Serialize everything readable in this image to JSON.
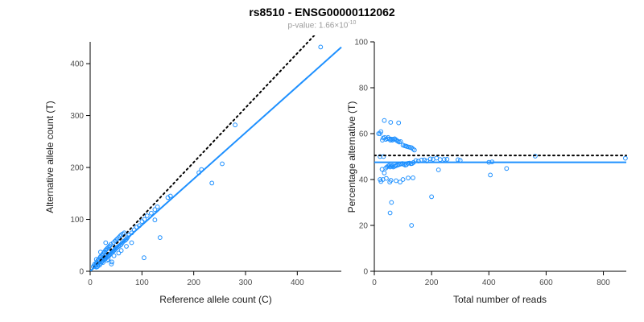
{
  "header": {
    "title": "rs8510 - ENSG00000112062",
    "p_label": "p-value: ",
    "p_base": "1.66×10",
    "p_exp": "-10"
  },
  "colors": {
    "accent_blue": "#1E90FF",
    "reference_line_black": "#000000",
    "tick_text": "#4d4d4d"
  },
  "ref_alt_pairs": [
    [
      6,
      9
    ],
    [
      8,
      12
    ],
    [
      12,
      8
    ],
    [
      10,
      10
    ],
    [
      14,
      9
    ],
    [
      9,
      14
    ],
    [
      15,
      12
    ],
    [
      12,
      16
    ],
    [
      16,
      16
    ],
    [
      18,
      12
    ],
    [
      13,
      18
    ],
    [
      20,
      15
    ],
    [
      15,
      21
    ],
    [
      22,
      18
    ],
    [
      17,
      23
    ],
    [
      24,
      20
    ],
    [
      19,
      26
    ],
    [
      26,
      22
    ],
    [
      20,
      28
    ],
    [
      28,
      24
    ],
    [
      22,
      30
    ],
    [
      30,
      25
    ],
    [
      24,
      32
    ],
    [
      32,
      27
    ],
    [
      25,
      34
    ],
    [
      34,
      29
    ],
    [
      27,
      36
    ],
    [
      36,
      30
    ],
    [
      28,
      38
    ],
    [
      38,
      32
    ],
    [
      30,
      41
    ],
    [
      40,
      34
    ],
    [
      32,
      43
    ],
    [
      42,
      36
    ],
    [
      34,
      45
    ],
    [
      44,
      38
    ],
    [
      36,
      47
    ],
    [
      46,
      40
    ],
    [
      38,
      49
    ],
    [
      48,
      42
    ],
    [
      40,
      52
    ],
    [
      50,
      44
    ],
    [
      45,
      55
    ],
    [
      52,
      46
    ],
    [
      48,
      58
    ],
    [
      55,
      48
    ],
    [
      50,
      60
    ],
    [
      58,
      50
    ],
    [
      52,
      62
    ],
    [
      60,
      52
    ],
    [
      55,
      65
    ],
    [
      62,
      55
    ],
    [
      58,
      68
    ],
    [
      65,
      58
    ],
    [
      60,
      70
    ],
    [
      68,
      60
    ],
    [
      63,
      72
    ],
    [
      70,
      62
    ],
    [
      66,
      74
    ],
    [
      72,
      65
    ],
    [
      12,
      23
    ],
    [
      20,
      37
    ],
    [
      30,
      55
    ],
    [
      35,
      23
    ],
    [
      46,
      30
    ],
    [
      55,
      35
    ],
    [
      60,
      40
    ],
    [
      70,
      48
    ],
    [
      80,
      55
    ],
    [
      42,
      18
    ],
    [
      41,
      14
    ],
    [
      104,
      26
    ],
    [
      135,
      65
    ],
    [
      25,
      17
    ],
    [
      33,
      21
    ],
    [
      75,
      70
    ],
    [
      80,
      74
    ],
    [
      85,
      80
    ],
    [
      90,
      85
    ],
    [
      95,
      88
    ],
    [
      100,
      96
    ],
    [
      105,
      100
    ],
    [
      110,
      107
    ],
    [
      118,
      112
    ],
    [
      125,
      119
    ],
    [
      130,
      124
    ],
    [
      150,
      142
    ],
    [
      155,
      145
    ],
    [
      125,
      99
    ],
    [
      210,
      190
    ],
    [
      215,
      196
    ],
    [
      235,
      170
    ],
    [
      255,
      207
    ],
    [
      280,
      282
    ],
    [
      445,
      432
    ]
  ],
  "chart_data": [
    {
      "type": "scatter",
      "title": "",
      "xlabel": "Reference allele count (C)",
      "ylabel": "Alternative allele count (T)",
      "xlim": [
        0,
        485
      ],
      "ylim": [
        0,
        442
      ],
      "xticks": [
        0,
        100,
        200,
        300,
        400
      ],
      "yticks": [
        0,
        100,
        200,
        300,
        400
      ],
      "grid": false,
      "point_color": "#1E90FF",
      "points_source": "ref_alt_pairs",
      "lines": [
        {
          "name": "expected-identity-line",
          "style": "dotted",
          "color": "#000000",
          "slope": 1.05,
          "intercept": 0
        },
        {
          "name": "fitted-regression-line",
          "style": "solid",
          "color": "#1E90FF",
          "slope": 0.89,
          "intercept": 0
        }
      ]
    },
    {
      "type": "scatter",
      "title": "",
      "xlabel": "Total number of reads",
      "ylabel": "Percentage alternative (T)",
      "xlim": [
        0,
        880
      ],
      "ylim": [
        0,
        100
      ],
      "xticks": [
        0,
        200,
        400,
        600,
        800
      ],
      "yticks": [
        0,
        20,
        40,
        60,
        80,
        100
      ],
      "grid": false,
      "point_color": "#1E90FF",
      "points_source": "derived: x = ref+alt, y = 100*alt/(ref+alt) from ref_alt_pairs",
      "lines": [
        {
          "name": "expected-50pct-line",
          "style": "dotted",
          "color": "#000000",
          "y": 50.5
        },
        {
          "name": "fitted-percentage-line",
          "style": "solid",
          "color": "#1E90FF",
          "y": 47.5
        }
      ]
    }
  ]
}
